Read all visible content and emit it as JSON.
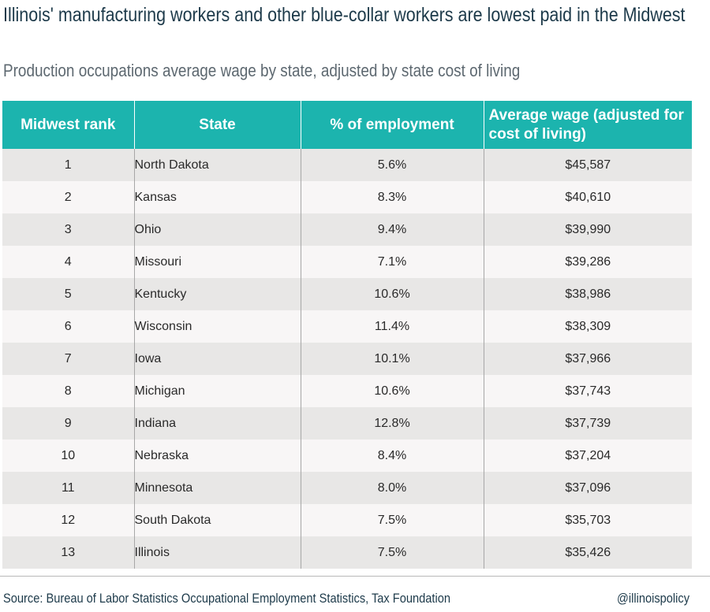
{
  "title": "Illinois' manufacturing workers and other blue-collar workers are lowest paid in the Midwest",
  "subtitle": "Production occupations average wage by state, adjusted by state cost of living",
  "colors": {
    "header_bg": "#1cb4ae",
    "header_text": "#ffffff",
    "row_odd": "#e8e7e6",
    "row_even": "#f8f6f6",
    "title": "#1d3a4a"
  },
  "chart_data": {
    "type": "table",
    "columns": [
      "Midwest rank",
      "State",
      "% of employment",
      "Average wage (adjusted for cost of living)"
    ],
    "rows": [
      [
        "1",
        "North Dakota",
        "5.6%",
        "$45,587"
      ],
      [
        "2",
        "Kansas",
        "8.3%",
        "$40,610"
      ],
      [
        "3",
        "Ohio",
        "9.4%",
        "$39,990"
      ],
      [
        "4",
        "Missouri",
        "7.1%",
        "$39,286"
      ],
      [
        "5",
        "Kentucky",
        "10.6%",
        "$38,986"
      ],
      [
        "6",
        "Wisconsin",
        "11.4%",
        "$38,309"
      ],
      [
        "7",
        "Iowa",
        "10.1%",
        "$37,966"
      ],
      [
        "8",
        "Michigan",
        "10.6%",
        "$37,743"
      ],
      [
        "9",
        "Indiana",
        "12.8%",
        "$37,739"
      ],
      [
        "10",
        "Nebraska",
        "8.4%",
        "$37,204"
      ],
      [
        "11",
        "Minnesota",
        "8.0%",
        "$37,096"
      ],
      [
        "12",
        "South Dakota",
        "7.5%",
        "$35,703"
      ],
      [
        "13",
        "Illinois",
        "7.5%",
        "$35,426"
      ]
    ]
  },
  "footer": {
    "source": "Source: Bureau of Labor Statistics Occupational Employment Statistics, Tax Foundation",
    "handle": "@illinoispolicy"
  }
}
